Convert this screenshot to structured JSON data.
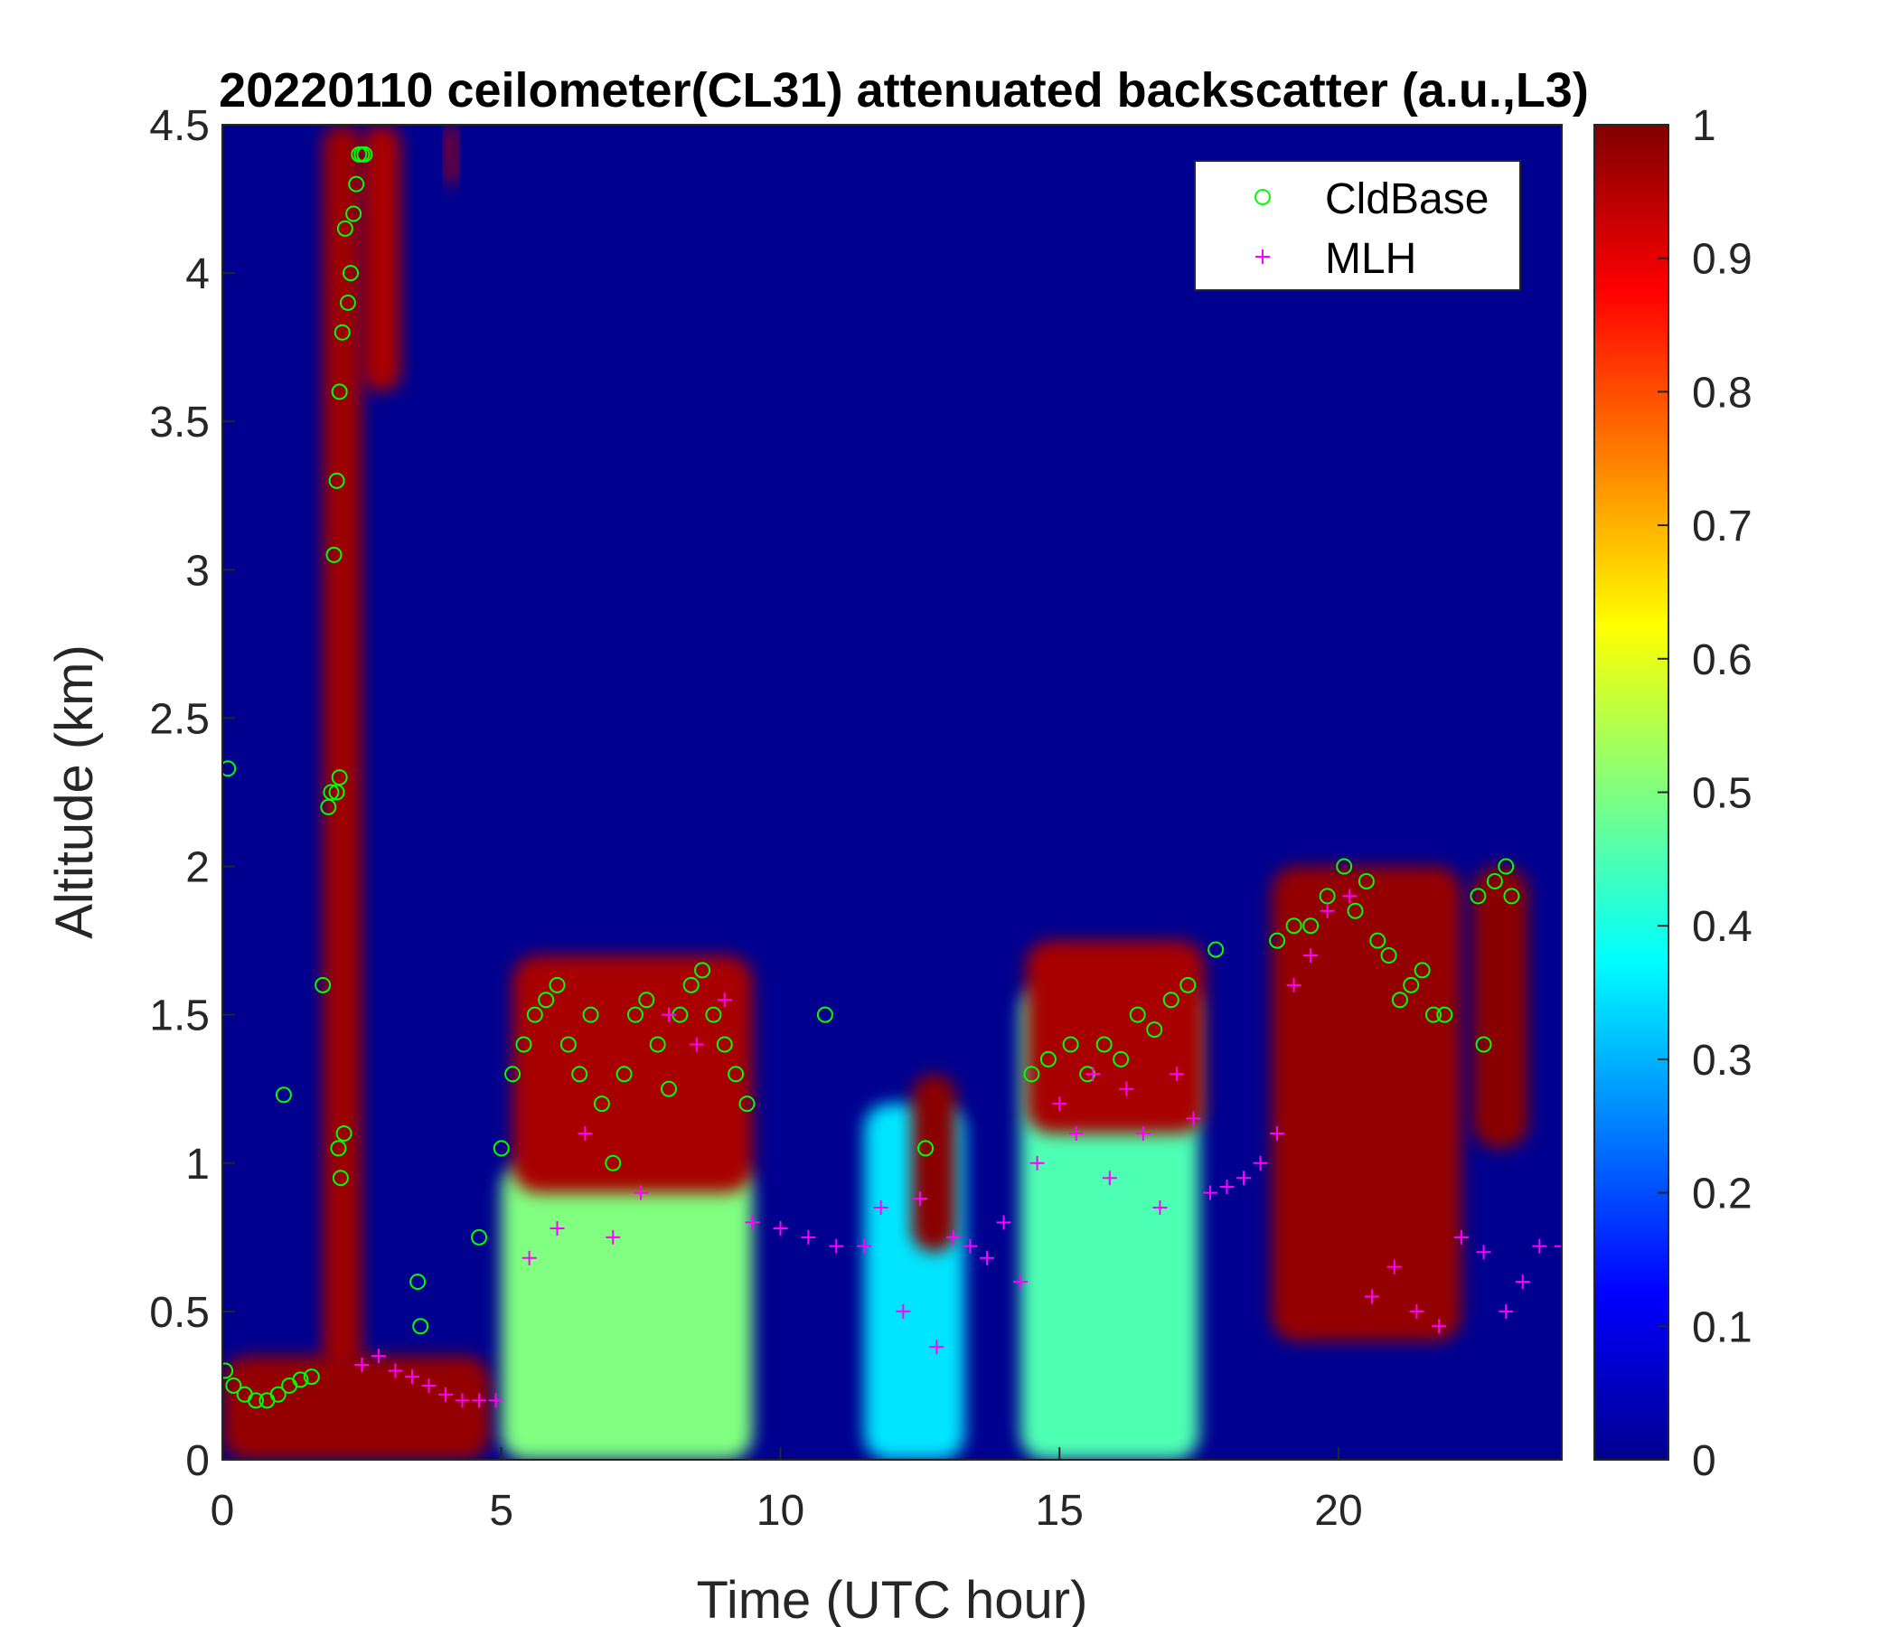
{
  "chart_data": {
    "type": "heatmap",
    "title": "20220110 ceilometer(CL31) attenuated backscatter (a.u.,L3)",
    "xlabel": "Time (UTC hour)",
    "ylabel": "Altitude (km)",
    "xlim": [
      0,
      24
    ],
    "ylim": [
      0,
      4.5
    ],
    "xticks": [
      0,
      5,
      10,
      15,
      20
    ],
    "yticks": [
      0,
      0.5,
      1,
      1.5,
      2,
      2.5,
      3,
      3.5,
      4,
      4.5
    ],
    "xtick_labels": [
      "0",
      "5",
      "10",
      "15",
      "20"
    ],
    "ytick_labels": [
      "0",
      "0.5",
      "1",
      "1.5",
      "2",
      "2.5",
      "3",
      "3.5",
      "4",
      "4.5"
    ],
    "colorbar": {
      "colormap": "jet",
      "range": [
        0,
        1
      ],
      "ticks": [
        "0",
        "0.1",
        "0.2",
        "0.3",
        "0.4",
        "0.5",
        "0.6",
        "0.7",
        "0.8",
        "0.9",
        "1"
      ]
    },
    "legend": {
      "placement": "top-right",
      "entries": [
        {
          "name": "CldBase",
          "marker": "circle",
          "color": "#00ff00"
        },
        {
          "name": "MLH",
          "marker": "plus",
          "color": "#ff00ff"
        }
      ]
    },
    "features": [
      {
        "t0": 0.0,
        "t1": 4.8,
        "z0": 0.0,
        "z1": 0.35,
        "v": 0.98
      },
      {
        "t0": 1.8,
        "t1": 2.5,
        "z0": 0.3,
        "z1": 4.5,
        "v": 0.97
      },
      {
        "t0": 2.5,
        "t1": 3.2,
        "z0": 3.6,
        "z1": 4.5,
        "v": 0.96
      },
      {
        "t0": 4.0,
        "t1": 4.2,
        "z0": 4.3,
        "z1": 4.5,
        "v": 0.95
      },
      {
        "t0": 5.0,
        "t1": 9.5,
        "z0": 0.0,
        "z1": 1.0,
        "v": 0.5
      },
      {
        "t0": 5.2,
        "t1": 9.5,
        "z0": 0.9,
        "z1": 1.7,
        "v": 0.96
      },
      {
        "t0": 11.5,
        "t1": 13.3,
        "z0": 0.0,
        "z1": 1.2,
        "v": 0.35
      },
      {
        "t0": 12.35,
        "t1": 13.15,
        "z0": 0.7,
        "z1": 1.3,
        "v": 0.99
      },
      {
        "t0": 14.3,
        "t1": 17.5,
        "z0": 0.0,
        "z1": 1.6,
        "v": 0.45
      },
      {
        "t0": 14.4,
        "t1": 17.6,
        "z0": 1.1,
        "z1": 1.75,
        "v": 0.96
      },
      {
        "t0": 18.8,
        "t1": 22.2,
        "z0": 0.4,
        "z1": 2.0,
        "v": 0.98
      },
      {
        "t0": 22.4,
        "t1": 23.4,
        "z0": 1.05,
        "z1": 2.0,
        "v": 0.99
      }
    ],
    "series": [
      {
        "name": "CldBase",
        "x": [
          0.05,
          0.2,
          0.4,
          0.6,
          0.8,
          1.0,
          1.2,
          1.4,
          1.6,
          1.8,
          0.1,
          1.1,
          1.9,
          1.95,
          2.0,
          2.05,
          2.1,
          2.15,
          2.2,
          2.25,
          2.3,
          2.35,
          2.4,
          2.45,
          2.5,
          2.55,
          2.08,
          2.12,
          2.18,
          2.05,
          2.1,
          3.5,
          3.55,
          4.6,
          5.0,
          5.2,
          5.4,
          5.6,
          5.8,
          6.0,
          6.2,
          6.4,
          6.6,
          6.8,
          7.0,
          7.2,
          7.4,
          7.6,
          7.8,
          8.0,
          8.2,
          8.4,
          8.6,
          8.8,
          9.0,
          9.2,
          9.4,
          10.8,
          12.6,
          14.5,
          14.8,
          15.2,
          15.5,
          15.8,
          16.1,
          16.4,
          16.7,
          17.0,
          17.3,
          17.8,
          18.9,
          19.2,
          19.5,
          19.8,
          20.1,
          20.3,
          20.5,
          20.7,
          20.9,
          21.1,
          21.3,
          21.5,
          21.7,
          21.9,
          22.5,
          22.6,
          22.8,
          23.0,
          23.1
        ],
        "y": [
          0.3,
          0.25,
          0.22,
          0.2,
          0.2,
          0.22,
          0.25,
          0.27,
          0.28,
          1.6,
          2.33,
          1.23,
          2.2,
          2.25,
          3.05,
          3.3,
          3.6,
          3.8,
          4.15,
          3.9,
          4.0,
          4.2,
          4.3,
          4.4,
          4.4,
          4.4,
          1.05,
          0.95,
          1.1,
          2.25,
          2.3,
          0.6,
          0.45,
          0.75,
          1.05,
          1.3,
          1.4,
          1.5,
          1.55,
          1.6,
          1.4,
          1.3,
          1.5,
          1.2,
          1.0,
          1.3,
          1.5,
          1.55,
          1.4,
          1.25,
          1.5,
          1.6,
          1.65,
          1.5,
          1.4,
          1.3,
          1.2,
          1.5,
          1.05,
          1.3,
          1.35,
          1.4,
          1.3,
          1.4,
          1.35,
          1.5,
          1.45,
          1.55,
          1.6,
          1.72,
          1.75,
          1.8,
          1.8,
          1.9,
          2.0,
          1.85,
          1.95,
          1.75,
          1.7,
          1.55,
          1.6,
          1.65,
          1.5,
          1.5,
          1.9,
          1.4,
          1.95,
          2.0,
          1.9
        ]
      },
      {
        "name": "MLH",
        "x": [
          2.5,
          2.8,
          3.1,
          3.4,
          3.7,
          4.0,
          4.3,
          4.6,
          4.9,
          5.5,
          6.0,
          6.5,
          7.0,
          7.5,
          8.0,
          8.5,
          9.0,
          9.5,
          10.0,
          10.5,
          11.0,
          11.5,
          11.8,
          12.2,
          12.5,
          12.8,
          13.1,
          13.4,
          13.7,
          14.0,
          14.3,
          14.6,
          15.0,
          15.3,
          15.6,
          15.9,
          16.2,
          16.5,
          16.8,
          17.1,
          17.4,
          17.7,
          18.0,
          18.3,
          18.6,
          18.9,
          19.2,
          19.5,
          19.8,
          20.2,
          20.6,
          21.0,
          21.4,
          21.8,
          22.2,
          22.6,
          23.0,
          23.3,
          23.6,
          24.0
        ],
        "y": [
          0.32,
          0.35,
          0.3,
          0.28,
          0.25,
          0.22,
          0.2,
          0.2,
          0.2,
          0.68,
          0.78,
          1.1,
          0.75,
          0.9,
          1.5,
          1.4,
          1.55,
          0.8,
          0.78,
          0.75,
          0.72,
          0.72,
          0.85,
          0.5,
          0.88,
          0.38,
          0.75,
          0.72,
          0.68,
          0.8,
          0.6,
          1.0,
          1.2,
          1.1,
          1.3,
          0.95,
          1.25,
          1.1,
          0.85,
          1.3,
          1.15,
          0.9,
          0.92,
          0.95,
          1.0,
          1.1,
          1.6,
          1.7,
          1.85,
          1.9,
          0.55,
          0.65,
          0.5,
          0.45,
          0.75,
          0.7,
          0.5,
          0.6,
          0.72,
          0.72
        ]
      }
    ]
  }
}
